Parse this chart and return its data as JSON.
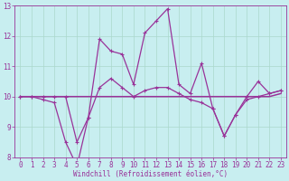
{
  "xlabel": "Windchill (Refroidissement éolien,°C)",
  "background_color": "#c8eef0",
  "grid_color": "#aad8cc",
  "line_color": "#993399",
  "x_values": [
    0,
    1,
    2,
    3,
    4,
    5,
    6,
    7,
    8,
    9,
    10,
    11,
    12,
    13,
    14,
    15,
    16,
    17,
    18,
    19,
    20,
    21,
    22,
    23
  ],
  "series1": [
    10.0,
    10.0,
    10.0,
    10.0,
    10.0,
    8.5,
    9.3,
    11.9,
    11.5,
    11.4,
    10.4,
    12.1,
    12.5,
    12.9,
    10.4,
    10.1,
    11.1,
    9.6,
    8.7,
    9.4,
    10.0,
    10.5,
    10.1,
    10.2
  ],
  "series2": [
    10.0,
    10.0,
    9.9,
    9.8,
    8.5,
    7.7,
    9.3,
    10.3,
    10.6,
    10.3,
    10.0,
    10.2,
    10.3,
    10.3,
    10.1,
    9.9,
    9.8,
    9.6,
    8.7,
    9.4,
    9.9,
    10.0,
    10.1,
    10.2
  ],
  "series3": [
    10.0,
    10.0,
    10.0,
    10.0,
    10.0,
    10.0,
    10.0,
    10.0,
    10.0,
    10.0,
    10.0,
    10.0,
    10.0,
    10.0,
    10.0,
    10.0,
    10.0,
    10.0,
    10.0,
    10.0,
    10.0,
    10.0,
    10.0,
    10.1
  ],
  "ylim": [
    8,
    13
  ],
  "xlim": [
    -0.5,
    23.5
  ],
  "yticks": [
    8,
    9,
    10,
    11,
    12,
    13
  ],
  "xticks": [
    0,
    1,
    2,
    3,
    4,
    5,
    6,
    7,
    8,
    9,
    10,
    11,
    12,
    13,
    14,
    15,
    16,
    17,
    18,
    19,
    20,
    21,
    22,
    23
  ],
  "tick_fontsize": 5.5,
  "xlabel_fontsize": 5.5
}
